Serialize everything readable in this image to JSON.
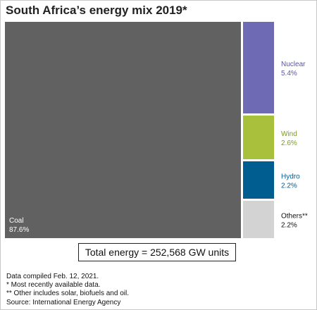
{
  "chart_data": {
    "type": "treemap",
    "title": "South Africa’s energy mix 2019*",
    "categories": [
      "Coal",
      "Nuclear",
      "Wind",
      "Hydro",
      "Others**"
    ],
    "values": [
      87.6,
      5.4,
      2.6,
      2.2,
      2.2
    ],
    "value_labels": [
      "87.6%",
      "5.4%",
      "2.6%",
      "2.2%",
      "2.2%"
    ],
    "unit": "%",
    "colors": [
      "#616161",
      "#6f6ab4",
      "#a8c03b",
      "#005d8f",
      "#d3d3d3"
    ],
    "label_colors": [
      "#ffffff",
      "#5b54a8",
      "#7a9a2a",
      "#005d8f",
      "#111111"
    ],
    "total_label": "Total energy = 252,568 GW units"
  },
  "footnotes": [
    "Data compiled Feb. 12, 2021.",
    "* Most recently available data.",
    "** Other includes solar, biofuels and oil.",
    "Source: International Energy Agency"
  ]
}
